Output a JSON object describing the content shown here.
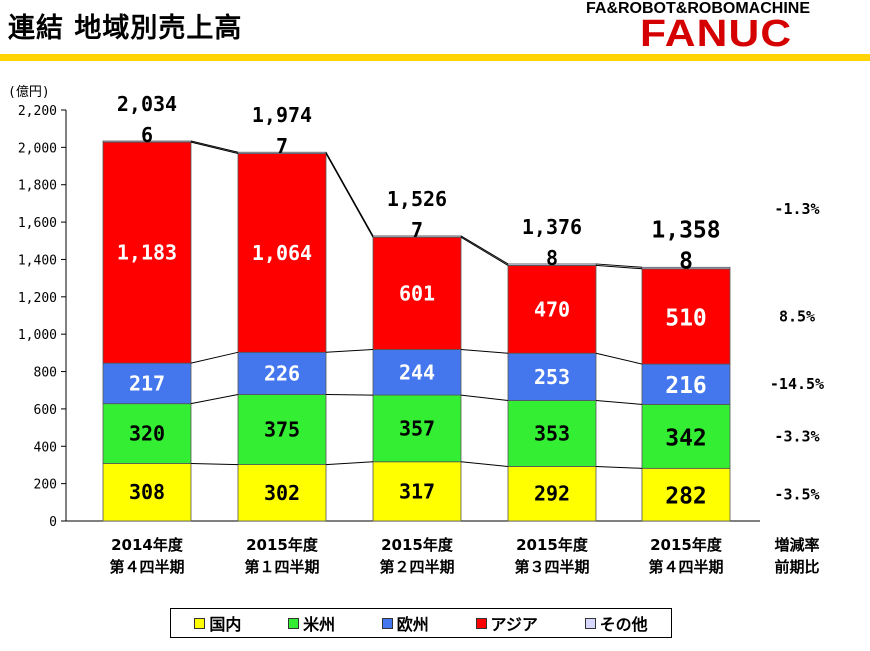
{
  "header": {
    "title": "連結 地域別売上高",
    "brand_tagline": "FA&ROBOT&ROBOMACHINE",
    "brand_logo": "FANUC"
  },
  "chart_data": {
    "type": "bar",
    "stacked": true,
    "title": "",
    "unit_label": "(億円)",
    "ylim": [
      0,
      2200
    ],
    "yticks": [
      "0",
      "200",
      "400",
      "600",
      "800",
      "1,000",
      "1,200",
      "1,400",
      "1,600",
      "1,800",
      "2,000",
      "2,200"
    ],
    "categories": [
      [
        "2014年度",
        "第４四半期"
      ],
      [
        "2015年度",
        "第１四半期"
      ],
      [
        "2015年度",
        "第２四半期"
      ],
      [
        "2015年度",
        "第３四半期"
      ],
      [
        "2015年度",
        "第４四半期"
      ]
    ],
    "series": [
      {
        "name": "国内",
        "color": "#ffff00",
        "values": [
          308,
          302,
          317,
          292,
          282
        ],
        "labels": [
          "308",
          "302",
          "317",
          "292",
          "282"
        ]
      },
      {
        "name": "米州",
        "color": "#33ee33",
        "values": [
          320,
          375,
          357,
          353,
          342
        ],
        "labels": [
          "320",
          "375",
          "357",
          "353",
          "342"
        ]
      },
      {
        "name": "欧州",
        "color": "#4477ee",
        "values": [
          217,
          226,
          244,
          253,
          216
        ],
        "labels": [
          "217",
          "226",
          "244",
          "253",
          "216"
        ]
      },
      {
        "name": "アジア",
        "color": "#ff0000",
        "values": [
          1183,
          1064,
          601,
          470,
          510
        ],
        "labels": [
          "1,183",
          "1,064",
          "601",
          "470",
          "510"
        ]
      },
      {
        "name": "その他",
        "color": "#d8d8ff",
        "values": [
          6,
          7,
          7,
          8,
          8
        ],
        "labels": [
          "6",
          "7",
          "7",
          "8",
          "8"
        ]
      }
    ],
    "totals": [
      "2,034",
      "1,974",
      "1,526",
      "1,376",
      "1,358"
    ],
    "change_header": [
      "増減率",
      "前期比"
    ],
    "change_rates": [
      {
        "series": "その他",
        "text": ""
      },
      {
        "series": "アジア",
        "text": "8.5%"
      },
      {
        "series": "欧州",
        "text": "-14.5%"
      },
      {
        "series": "米州",
        "text": "-3.3%"
      },
      {
        "series": "国内",
        "text": "-3.5%"
      }
    ],
    "total_change_rate": "-1.3%",
    "legend_position": "bottom"
  }
}
